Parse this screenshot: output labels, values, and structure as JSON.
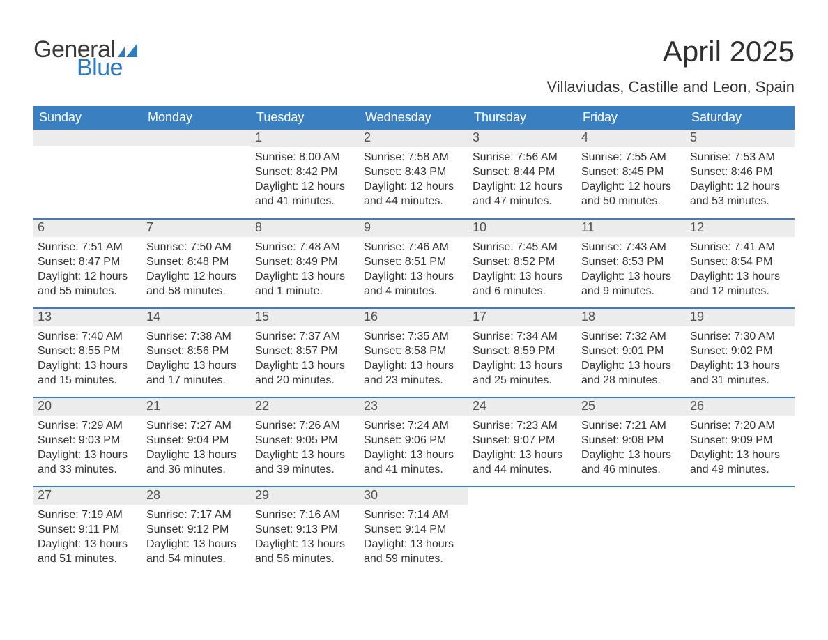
{
  "brand": {
    "part1": "General",
    "part2": "Blue",
    "flag_color": "#2d7bc2"
  },
  "title": "April 2025",
  "location": "Villaviudas, Castille and Leon, Spain",
  "colors": {
    "header_bg": "#3a7fc0",
    "header_text": "#ffffff",
    "daynum_bg": "#ececec",
    "row_border": "#3a7fc0",
    "body_text": "#333333",
    "logo_gray": "#3a3a3a",
    "logo_blue": "#2d7bc2",
    "background": "#ffffff"
  },
  "day_headers": [
    "Sunday",
    "Monday",
    "Tuesday",
    "Wednesday",
    "Thursday",
    "Friday",
    "Saturday"
  ],
  "weeks": [
    [
      null,
      null,
      {
        "n": "1",
        "sunrise": "Sunrise: 8:00 AM",
        "sunset": "Sunset: 8:42 PM",
        "day1": "Daylight: 12 hours",
        "day2": "and 41 minutes."
      },
      {
        "n": "2",
        "sunrise": "Sunrise: 7:58 AM",
        "sunset": "Sunset: 8:43 PM",
        "day1": "Daylight: 12 hours",
        "day2": "and 44 minutes."
      },
      {
        "n": "3",
        "sunrise": "Sunrise: 7:56 AM",
        "sunset": "Sunset: 8:44 PM",
        "day1": "Daylight: 12 hours",
        "day2": "and 47 minutes."
      },
      {
        "n": "4",
        "sunrise": "Sunrise: 7:55 AM",
        "sunset": "Sunset: 8:45 PM",
        "day1": "Daylight: 12 hours",
        "day2": "and 50 minutes."
      },
      {
        "n": "5",
        "sunrise": "Sunrise: 7:53 AM",
        "sunset": "Sunset: 8:46 PM",
        "day1": "Daylight: 12 hours",
        "day2": "and 53 minutes."
      }
    ],
    [
      {
        "n": "6",
        "sunrise": "Sunrise: 7:51 AM",
        "sunset": "Sunset: 8:47 PM",
        "day1": "Daylight: 12 hours",
        "day2": "and 55 minutes."
      },
      {
        "n": "7",
        "sunrise": "Sunrise: 7:50 AM",
        "sunset": "Sunset: 8:48 PM",
        "day1": "Daylight: 12 hours",
        "day2": "and 58 minutes."
      },
      {
        "n": "8",
        "sunrise": "Sunrise: 7:48 AM",
        "sunset": "Sunset: 8:49 PM",
        "day1": "Daylight: 13 hours",
        "day2": "and 1 minute."
      },
      {
        "n": "9",
        "sunrise": "Sunrise: 7:46 AM",
        "sunset": "Sunset: 8:51 PM",
        "day1": "Daylight: 13 hours",
        "day2": "and 4 minutes."
      },
      {
        "n": "10",
        "sunrise": "Sunrise: 7:45 AM",
        "sunset": "Sunset: 8:52 PM",
        "day1": "Daylight: 13 hours",
        "day2": "and 6 minutes."
      },
      {
        "n": "11",
        "sunrise": "Sunrise: 7:43 AM",
        "sunset": "Sunset: 8:53 PM",
        "day1": "Daylight: 13 hours",
        "day2": "and 9 minutes."
      },
      {
        "n": "12",
        "sunrise": "Sunrise: 7:41 AM",
        "sunset": "Sunset: 8:54 PM",
        "day1": "Daylight: 13 hours",
        "day2": "and 12 minutes."
      }
    ],
    [
      {
        "n": "13",
        "sunrise": "Sunrise: 7:40 AM",
        "sunset": "Sunset: 8:55 PM",
        "day1": "Daylight: 13 hours",
        "day2": "and 15 minutes."
      },
      {
        "n": "14",
        "sunrise": "Sunrise: 7:38 AM",
        "sunset": "Sunset: 8:56 PM",
        "day1": "Daylight: 13 hours",
        "day2": "and 17 minutes."
      },
      {
        "n": "15",
        "sunrise": "Sunrise: 7:37 AM",
        "sunset": "Sunset: 8:57 PM",
        "day1": "Daylight: 13 hours",
        "day2": "and 20 minutes."
      },
      {
        "n": "16",
        "sunrise": "Sunrise: 7:35 AM",
        "sunset": "Sunset: 8:58 PM",
        "day1": "Daylight: 13 hours",
        "day2": "and 23 minutes."
      },
      {
        "n": "17",
        "sunrise": "Sunrise: 7:34 AM",
        "sunset": "Sunset: 8:59 PM",
        "day1": "Daylight: 13 hours",
        "day2": "and 25 minutes."
      },
      {
        "n": "18",
        "sunrise": "Sunrise: 7:32 AM",
        "sunset": "Sunset: 9:01 PM",
        "day1": "Daylight: 13 hours",
        "day2": "and 28 minutes."
      },
      {
        "n": "19",
        "sunrise": "Sunrise: 7:30 AM",
        "sunset": "Sunset: 9:02 PM",
        "day1": "Daylight: 13 hours",
        "day2": "and 31 minutes."
      }
    ],
    [
      {
        "n": "20",
        "sunrise": "Sunrise: 7:29 AM",
        "sunset": "Sunset: 9:03 PM",
        "day1": "Daylight: 13 hours",
        "day2": "and 33 minutes."
      },
      {
        "n": "21",
        "sunrise": "Sunrise: 7:27 AM",
        "sunset": "Sunset: 9:04 PM",
        "day1": "Daylight: 13 hours",
        "day2": "and 36 minutes."
      },
      {
        "n": "22",
        "sunrise": "Sunrise: 7:26 AM",
        "sunset": "Sunset: 9:05 PM",
        "day1": "Daylight: 13 hours",
        "day2": "and 39 minutes."
      },
      {
        "n": "23",
        "sunrise": "Sunrise: 7:24 AM",
        "sunset": "Sunset: 9:06 PM",
        "day1": "Daylight: 13 hours",
        "day2": "and 41 minutes."
      },
      {
        "n": "24",
        "sunrise": "Sunrise: 7:23 AM",
        "sunset": "Sunset: 9:07 PM",
        "day1": "Daylight: 13 hours",
        "day2": "and 44 minutes."
      },
      {
        "n": "25",
        "sunrise": "Sunrise: 7:21 AM",
        "sunset": "Sunset: 9:08 PM",
        "day1": "Daylight: 13 hours",
        "day2": "and 46 minutes."
      },
      {
        "n": "26",
        "sunrise": "Sunrise: 7:20 AM",
        "sunset": "Sunset: 9:09 PM",
        "day1": "Daylight: 13 hours",
        "day2": "and 49 minutes."
      }
    ],
    [
      {
        "n": "27",
        "sunrise": "Sunrise: 7:19 AM",
        "sunset": "Sunset: 9:11 PM",
        "day1": "Daylight: 13 hours",
        "day2": "and 51 minutes."
      },
      {
        "n": "28",
        "sunrise": "Sunrise: 7:17 AM",
        "sunset": "Sunset: 9:12 PM",
        "day1": "Daylight: 13 hours",
        "day2": "and 54 minutes."
      },
      {
        "n": "29",
        "sunrise": "Sunrise: 7:16 AM",
        "sunset": "Sunset: 9:13 PM",
        "day1": "Daylight: 13 hours",
        "day2": "and 56 minutes."
      },
      {
        "n": "30",
        "sunrise": "Sunrise: 7:14 AM",
        "sunset": "Sunset: 9:14 PM",
        "day1": "Daylight: 13 hours",
        "day2": "and 59 minutes."
      },
      null,
      null,
      null
    ]
  ]
}
